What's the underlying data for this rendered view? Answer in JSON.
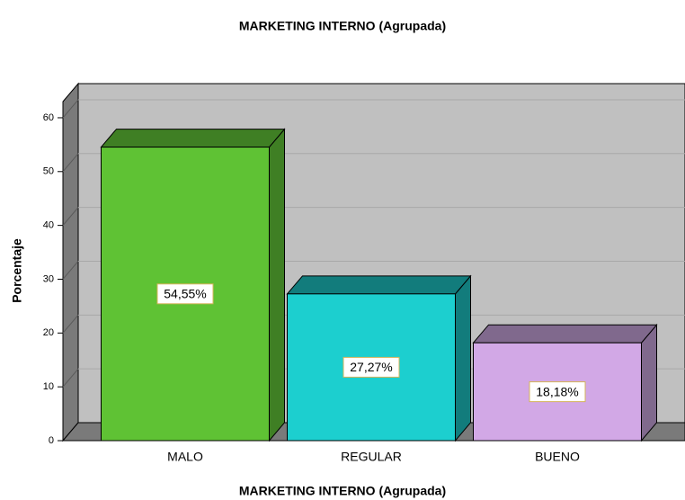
{
  "chart_data": {
    "type": "bar3d",
    "title": "MARKETING INTERNO (Agrupada)",
    "x_label": "MARKETING INTERNO (Agrupada)",
    "y_label": "Porcentaje",
    "categories": [
      "MALO",
      "REGULAR",
      "BUENO"
    ],
    "values": [
      54.55,
      27.27,
      18.18
    ],
    "value_labels": [
      "54,55%",
      "27,27%",
      "18,18%"
    ],
    "colors": [
      "#5fc234",
      "#1ccfcf",
      "#d2a8e6"
    ],
    "side_colors": [
      "#3f7f24",
      "#127c7c",
      "#80698d"
    ],
    "ylim": [
      0,
      63
    ],
    "yticks": [
      0,
      10,
      20,
      30,
      40,
      50,
      60
    ],
    "grid": true
  }
}
